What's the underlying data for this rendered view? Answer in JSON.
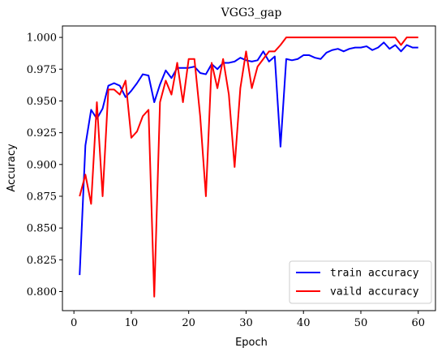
{
  "chart_data": {
    "type": "line",
    "title": "VGG3_gap",
    "xlabel": "Epoch",
    "ylabel": "Accuracy",
    "xlim": [
      -2,
      63
    ],
    "ylim": [
      0.785,
      1.009
    ],
    "xticks": [
      0,
      10,
      20,
      30,
      40,
      50,
      60
    ],
    "yticks": [
      0.8,
      0.825,
      0.85,
      0.875,
      0.9,
      0.925,
      0.95,
      0.975,
      1.0
    ],
    "ytick_labels": [
      "0.800",
      "0.825",
      "0.850",
      "0.875",
      "0.900",
      "0.925",
      "0.950",
      "0.975",
      "1.000"
    ],
    "grid": false,
    "legend_position": "lower-right",
    "series": [
      {
        "name": "train accuracy",
        "color": "#0000ff",
        "x": [
          1,
          2,
          3,
          4,
          5,
          6,
          7,
          8,
          9,
          10,
          11,
          12,
          13,
          14,
          15,
          16,
          17,
          18,
          19,
          20,
          21,
          22,
          23,
          24,
          25,
          26,
          27,
          28,
          29,
          30,
          31,
          32,
          33,
          34,
          35,
          36,
          37,
          38,
          39,
          40,
          41,
          42,
          43,
          44,
          45,
          46,
          47,
          48,
          49,
          50,
          51,
          52,
          53,
          54,
          55,
          56,
          57,
          58,
          59,
          60
        ],
        "y": [
          0.813,
          0.915,
          0.943,
          0.936,
          0.944,
          0.962,
          0.964,
          0.962,
          0.953,
          0.958,
          0.964,
          0.971,
          0.97,
          0.949,
          0.963,
          0.974,
          0.968,
          0.976,
          0.976,
          0.976,
          0.977,
          0.972,
          0.971,
          0.979,
          0.975,
          0.98,
          0.98,
          0.981,
          0.984,
          0.982,
          0.981,
          0.982,
          0.989,
          0.981,
          0.985,
          0.914,
          0.983,
          0.982,
          0.983,
          0.986,
          0.986,
          0.984,
          0.983,
          0.988,
          0.99,
          0.991,
          0.989,
          0.991,
          0.992,
          0.992,
          0.993,
          0.99,
          0.992,
          0.996,
          0.991,
          0.994,
          0.989,
          0.994,
          0.992,
          0.992
        ]
      },
      {
        "name": "vaild accuracy",
        "color": "#ff0000",
        "x": [
          1,
          2,
          3,
          4,
          5,
          6,
          7,
          8,
          9,
          10,
          11,
          12,
          13,
          14,
          15,
          16,
          17,
          18,
          19,
          20,
          21,
          22,
          23,
          24,
          25,
          26,
          27,
          28,
          29,
          30,
          31,
          32,
          33,
          34,
          35,
          36,
          37,
          38,
          39,
          40,
          41,
          42,
          43,
          44,
          45,
          46,
          47,
          48,
          49,
          50,
          51,
          52,
          53,
          54,
          55,
          56,
          57,
          58,
          59,
          60
        ],
        "y": [
          0.875,
          0.892,
          0.869,
          0.949,
          0.875,
          0.959,
          0.959,
          0.955,
          0.966,
          0.921,
          0.926,
          0.938,
          0.943,
          0.796,
          0.949,
          0.966,
          0.955,
          0.98,
          0.949,
          0.983,
          0.983,
          0.938,
          0.875,
          0.98,
          0.96,
          0.983,
          0.955,
          0.898,
          0.96,
          0.989,
          0.96,
          0.977,
          0.983,
          0.989,
          0.989,
          0.994,
          1.0,
          1.0,
          1.0,
          1.0,
          1.0,
          1.0,
          1.0,
          1.0,
          1.0,
          1.0,
          1.0,
          1.0,
          1.0,
          1.0,
          1.0,
          1.0,
          1.0,
          1.0,
          1.0,
          1.0,
          0.994,
          1.0,
          1.0,
          1.0
        ]
      }
    ]
  }
}
